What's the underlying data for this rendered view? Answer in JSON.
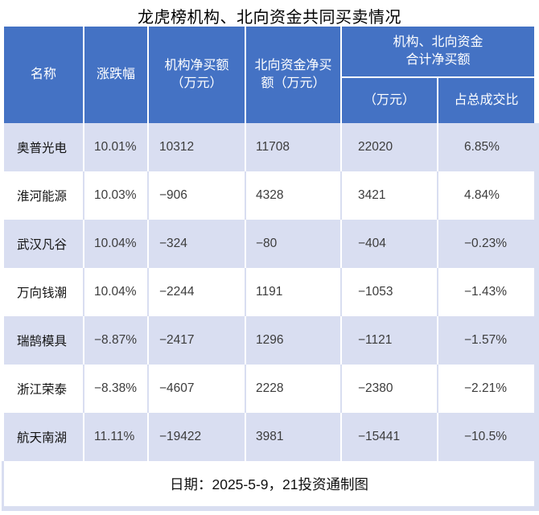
{
  "title": "龙虎榜机构、北向资金共同买卖情况",
  "colors": {
    "header_bg": "#4472C4",
    "header_text": "#FFFFFF",
    "row_alt_bg": "#D9DEF1",
    "row_bg": "#FFFFFF",
    "title_text": "#000000",
    "body_text": "#3C3C3C"
  },
  "table": {
    "header": {
      "name": "名称",
      "change": "涨跌幅",
      "inst_net": "机构净买额\n（万元）",
      "north_net": "北向资金净买\n额（万元）",
      "combined_group": "机构、北向资金\n合计净买额",
      "combined_amount": "（万元）",
      "combined_pct": "占总成交比"
    },
    "row_keys": [
      "name",
      "change",
      "inst_net",
      "north_net",
      "total_net",
      "pct_of_turnover"
    ],
    "rows": [
      {
        "name": "奥普光电",
        "change": "10.01%",
        "inst_net": "10312",
        "north_net": "11708",
        "total_net": "22020",
        "pct_of_turnover": "6.85%"
      },
      {
        "name": "淮河能源",
        "change": "10.03%",
        "inst_net": "−906",
        "north_net": "4328",
        "total_net": "3421",
        "pct_of_turnover": "4.84%"
      },
      {
        "name": "武汉凡谷",
        "change": "10.04%",
        "inst_net": "−324",
        "north_net": "−80",
        "total_net": "−404",
        "pct_of_turnover": "−0.23%"
      },
      {
        "name": "万向钱潮",
        "change": "10.04%",
        "inst_net": "−2244",
        "north_net": "1191",
        "total_net": "−1053",
        "pct_of_turnover": "−1.43%"
      },
      {
        "name": "瑞鹄模具",
        "change": "−8.87%",
        "inst_net": "−2417",
        "north_net": "1296",
        "total_net": "−1121",
        "pct_of_turnover": "−1.57%"
      },
      {
        "name": "浙江荣泰",
        "change": "−8.38%",
        "inst_net": "−4607",
        "north_net": "2228",
        "total_net": "−2380",
        "pct_of_turnover": "−2.21%"
      },
      {
        "name": "航天南湖",
        "change": "11.11%",
        "inst_net": "−19422",
        "north_net": "3981",
        "total_net": "−15441",
        "pct_of_turnover": "−10.5%"
      }
    ]
  },
  "footer": {
    "text": "日期：2025-5-9，21投资通制图",
    "date": "2025-5-9",
    "credit": "21投资通制图"
  },
  "chart_data": {
    "type": "table",
    "title": "龙虎榜机构、北向资金共同买卖情况",
    "columns": [
      "名称",
      "涨跌幅(%)",
      "机构净买额（万元）",
      "北向资金净买额（万元）",
      "机构、北向资金合计净买额（万元）",
      "机构、北向资金合计净买额占总成交比(%)"
    ],
    "rows": [
      [
        "奥普光电",
        10.01,
        10312,
        11708,
        22020,
        6.85
      ],
      [
        "淮河能源",
        10.03,
        -906,
        4328,
        3421,
        4.84
      ],
      [
        "武汉凡谷",
        10.04,
        -324,
        -80,
        -404,
        -0.23
      ],
      [
        "万向钱潮",
        10.04,
        -2244,
        1191,
        -1053,
        -1.43
      ],
      [
        "瑞鹄模具",
        -8.87,
        -2417,
        1296,
        -1121,
        -1.57
      ],
      [
        "浙江荣泰",
        -8.38,
        -4607,
        2228,
        -2380,
        -2.21
      ],
      [
        "航天南湖",
        11.11,
        -19422,
        3981,
        -15441,
        -10.5
      ]
    ],
    "date": "2025-5-9",
    "source": "21投资通制图"
  }
}
